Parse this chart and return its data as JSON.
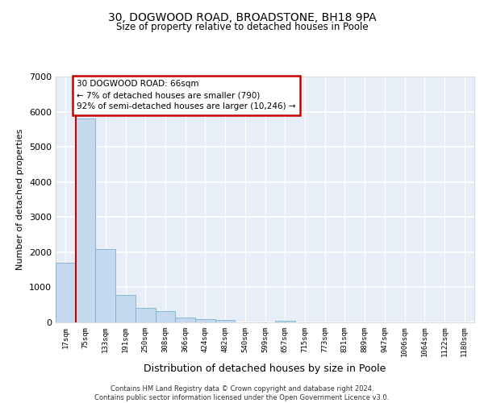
{
  "title_line1": "30, DOGWOOD ROAD, BROADSTONE, BH18 9PA",
  "title_line2": "Size of property relative to detached houses in Poole",
  "xlabel": "Distribution of detached houses by size in Poole",
  "ylabel": "Number of detached properties",
  "bar_color": "#c5d9ee",
  "bar_edge_color": "#7aafd4",
  "categories": [
    "17sqm",
    "75sqm",
    "133sqm",
    "191sqm",
    "250sqm",
    "308sqm",
    "366sqm",
    "424sqm",
    "482sqm",
    "540sqm",
    "599sqm",
    "657sqm",
    "715sqm",
    "773sqm",
    "831sqm",
    "889sqm",
    "947sqm",
    "1006sqm",
    "1064sqm",
    "1122sqm",
    "1180sqm"
  ],
  "values": [
    1700,
    5800,
    2100,
    790,
    420,
    330,
    130,
    100,
    60,
    0,
    0,
    50,
    0,
    0,
    0,
    0,
    0,
    0,
    0,
    0,
    0
  ],
  "ylim": [
    0,
    7000
  ],
  "yticks": [
    0,
    1000,
    2000,
    3000,
    4000,
    5000,
    6000,
    7000
  ],
  "annotation_text": "30 DOGWOOD ROAD: 66sqm\n← 7% of detached houses are smaller (790)\n92% of semi-detached houses are larger (10,246) →",
  "annotation_box_color": "#ffffff",
  "annotation_box_edge_color": "#cc0000",
  "vline_color": "#cc0000",
  "vline_x": 0.5,
  "footnote": "Contains HM Land Registry data © Crown copyright and database right 2024.\nContains public sector information licensed under the Open Government Licence v3.0.",
  "background_color": "#e8eef8",
  "grid_color": "#ffffff",
  "fig_background": "#ffffff"
}
